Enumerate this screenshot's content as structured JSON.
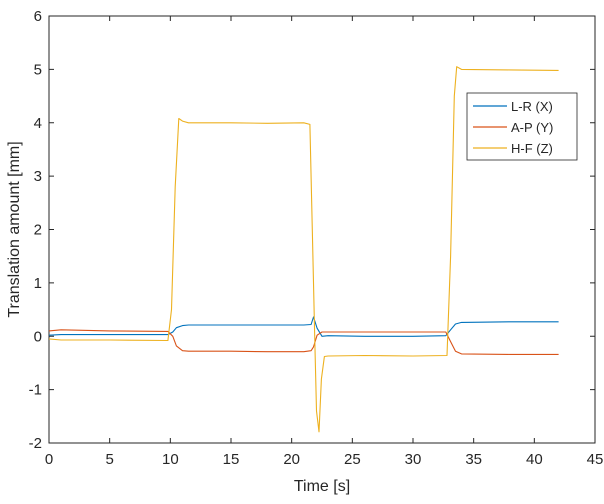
{
  "chart_data": {
    "type": "line",
    "xlabel": "Time [s]",
    "ylabel": "Translation amount [mm]",
    "xlim": [
      0,
      45
    ],
    "ylim": [
      -2,
      6
    ],
    "xticks": [
      "0",
      "5",
      "10",
      "15",
      "20",
      "25",
      "30",
      "35",
      "40",
      "45"
    ],
    "yticks": [
      "-2",
      "-1",
      "0",
      "1",
      "2",
      "3",
      "4",
      "5",
      "6"
    ],
    "grid": false,
    "legend": {
      "position": "top-right"
    },
    "series": [
      {
        "name": "L-R (X)",
        "color": "#0072BD",
        "x": [
          0,
          1,
          5,
          9.8,
          10.2,
          10.5,
          11,
          11.5,
          15,
          18,
          21,
          21.6,
          21.8,
          22.1,
          22.5,
          23,
          26,
          30,
          32.7,
          33.1,
          33.5,
          34,
          38,
          42
        ],
        "y": [
          0.02,
          0.03,
          0.03,
          0.03,
          0.08,
          0.16,
          0.2,
          0.21,
          0.21,
          0.21,
          0.21,
          0.22,
          0.36,
          0.15,
          0.0,
          0.01,
          0.0,
          0.0,
          0.01,
          0.12,
          0.23,
          0.26,
          0.27,
          0.27
        ]
      },
      {
        "name": "A-P (Y)",
        "color": "#D95319",
        "x": [
          0,
          1,
          5,
          9.8,
          10.2,
          10.5,
          11,
          11.5,
          15,
          18,
          21,
          21.6,
          21.8,
          22.1,
          22.5,
          23,
          26,
          30,
          32.7,
          33.1,
          33.5,
          34,
          38,
          42
        ],
        "y": [
          0.1,
          0.12,
          0.1,
          0.09,
          0.0,
          -0.18,
          -0.27,
          -0.28,
          -0.28,
          -0.29,
          -0.29,
          -0.27,
          -0.2,
          0.02,
          0.08,
          0.08,
          0.08,
          0.08,
          0.08,
          -0.1,
          -0.28,
          -0.33,
          -0.34,
          -0.34
        ]
      },
      {
        "name": "H-F (Z)",
        "color": "#EDB120",
        "x": [
          0,
          1,
          5,
          9.8,
          10.1,
          10.4,
          10.7,
          11,
          11.5,
          15,
          18,
          21,
          21.5,
          21.7,
          21.9,
          22.05,
          22.25,
          22.45,
          22.7,
          23,
          26,
          30,
          32.8,
          33.1,
          33.4,
          33.6,
          34,
          38,
          42
        ],
        "y": [
          -0.05,
          -0.07,
          -0.07,
          -0.08,
          0.5,
          2.8,
          4.08,
          4.03,
          4.0,
          4.0,
          3.99,
          4.0,
          3.97,
          2.0,
          0.0,
          -1.4,
          -1.79,
          -0.8,
          -0.38,
          -0.37,
          -0.36,
          -0.37,
          -0.36,
          1.5,
          4.5,
          5.05,
          5.0,
          4.99,
          4.98
        ]
      }
    ]
  }
}
